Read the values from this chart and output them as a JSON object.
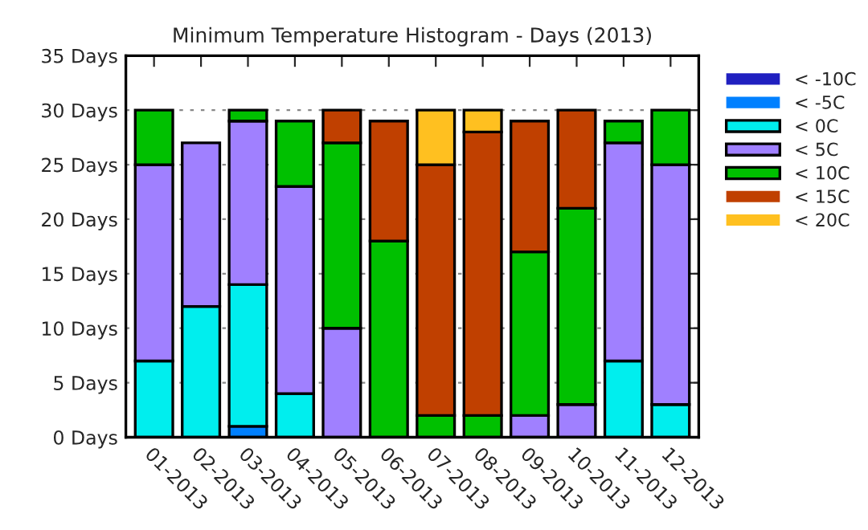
{
  "chart_data": {
    "type": "bar",
    "title": "Minimum Temperature Histogram - Days (2013)",
    "stacked": true,
    "categories": [
      "01-2013",
      "02-2013",
      "03-2013",
      "04-2013",
      "05-2013",
      "06-2013",
      "07-2013",
      "08-2013",
      "09-2013",
      "10-2013",
      "11-2013",
      "12-2013"
    ],
    "series": [
      {
        "name": "< -10C",
        "color": "#2020c0",
        "values": [
          0,
          0,
          0,
          0,
          0,
          0,
          0,
          0,
          0,
          0,
          0,
          0
        ]
      },
      {
        "name": "< -5C",
        "color": "#0080ff",
        "values": [
          0,
          0,
          1,
          0,
          0,
          0,
          0,
          0,
          0,
          0,
          0,
          0
        ]
      },
      {
        "name": "< 0C",
        "color": "#00eeee",
        "values": [
          7,
          12,
          13,
          4,
          0,
          0,
          0,
          0,
          0,
          0,
          7,
          3
        ]
      },
      {
        "name": "< 5C",
        "color": "#a080ff",
        "values": [
          18,
          15,
          15,
          19,
          10,
          0,
          0,
          0,
          2,
          3,
          20,
          22
        ]
      },
      {
        "name": "< 10C",
        "color": "#00c000",
        "values": [
          5,
          0,
          1,
          6,
          17,
          18,
          2,
          2,
          15,
          18,
          2,
          5
        ]
      },
      {
        "name": "< 15C",
        "color": "#c04000",
        "values": [
          0,
          0,
          0,
          0,
          3,
          11,
          23,
          26,
          12,
          9,
          0,
          0
        ]
      },
      {
        "name": "< 20C",
        "color": "#ffc020",
        "values": [
          0,
          0,
          0,
          0,
          0,
          0,
          5,
          2,
          0,
          0,
          0,
          0
        ]
      }
    ],
    "ylim": [
      0,
      35
    ],
    "yticks": [
      {
        "value": 0,
        "label": "0 Days"
      },
      {
        "value": 5,
        "label": "5 Days"
      },
      {
        "value": 10,
        "label": "10 Days"
      },
      {
        "value": 15,
        "label": "15 Days"
      },
      {
        "value": 20,
        "label": "20 Days"
      },
      {
        "value": 25,
        "label": "25 Days"
      },
      {
        "value": 30,
        "label": "30 Days"
      },
      {
        "value": 35,
        "label": "35 Days"
      }
    ],
    "grid": "y",
    "legend": "right"
  }
}
